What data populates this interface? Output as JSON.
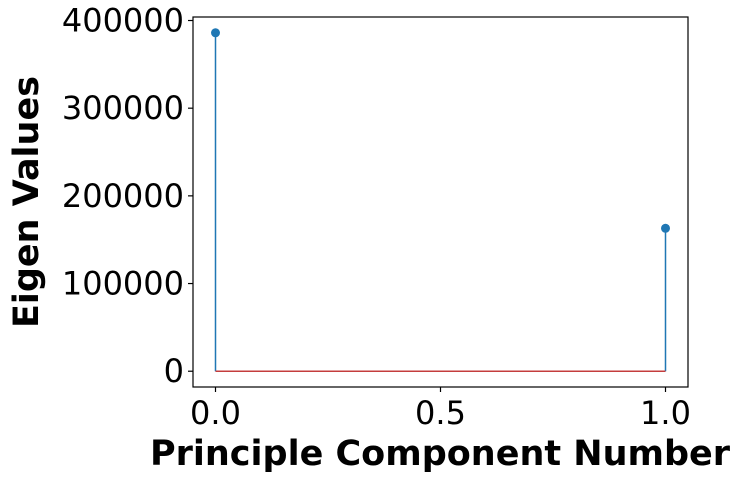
{
  "chart_data": {
    "type": "stem",
    "title": "",
    "xlabel": "Principle Component Number",
    "ylabel": "Eigen Values",
    "x": [
      0,
      1
    ],
    "values": [
      386000,
      163000
    ],
    "xlim": [
      -0.05,
      1.05
    ],
    "ylim": [
      -18000,
      404000
    ],
    "xticks": [
      {
        "value": 0.0,
        "label": "0.0"
      },
      {
        "value": 0.5,
        "label": "0.5"
      },
      {
        "value": 1.0,
        "label": "1.0"
      }
    ],
    "yticks": [
      {
        "value": 0,
        "label": "0"
      },
      {
        "value": 100000,
        "label": "100000"
      },
      {
        "value": 200000,
        "label": "200000"
      },
      {
        "value": 300000,
        "label": "300000"
      },
      {
        "value": 400000,
        "label": "400000"
      }
    ],
    "grid": false,
    "colors": {
      "stem": "#1f77b4",
      "baseline": "#c43c3c",
      "axis": "#000000"
    }
  }
}
